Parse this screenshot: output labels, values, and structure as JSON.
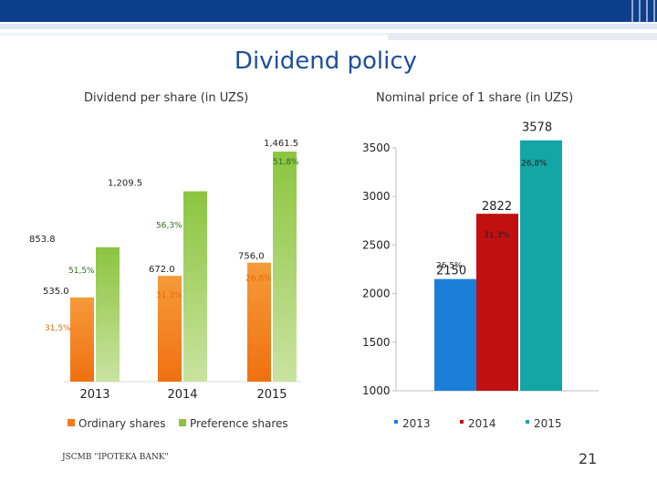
{
  "slide": {
    "title": "Dividend policy",
    "footer": "JSCMB \"IPOTEKA BANK\"",
    "page_number": "21"
  },
  "chart_data": [
    {
      "type": "bar",
      "title": "Dividend per share (in UZS)",
      "categories": [
        "2013",
        "2014",
        "2015"
      ],
      "series": [
        {
          "name": "Ordinary shares",
          "color": "#f07a1a",
          "values": [
            535.0,
            672.0,
            756.0
          ],
          "value_labels": [
            "535.0",
            "672.0",
            "756,0"
          ],
          "annotations": [
            "31,5%",
            "31,3%",
            "26,8%"
          ]
        },
        {
          "name": "Preference shares",
          "color": "#8bc53f",
          "values": [
            853.8,
            1209.5,
            1461.5
          ],
          "value_labels": [
            "853.8",
            "1,209.5",
            "1,461.5"
          ],
          "annotations": [
            "51,5%",
            "56,3%",
            "51,8%"
          ]
        }
      ],
      "ylim": [
        0,
        1600
      ],
      "grid": false,
      "legend": "bottom"
    },
    {
      "type": "bar",
      "title": "Nominal price of 1 share (in UZS)",
      "categories": [
        "2013",
        "2014",
        "2015"
      ],
      "values": [
        2150,
        2822,
        3578
      ],
      "value_labels": [
        "2150",
        "2822",
        "3578"
      ],
      "annotations": [
        "26,5%",
        "31,3%",
        "26,8%"
      ],
      "colors": [
        "#1b7fd9",
        "#c21010",
        "#14a6a6"
      ],
      "yticks": [
        "1000",
        "1500",
        "2000",
        "2500",
        "3000",
        "3500"
      ],
      "ylim": [
        1000,
        3600
      ],
      "grid": false,
      "legend": "bottom"
    }
  ]
}
